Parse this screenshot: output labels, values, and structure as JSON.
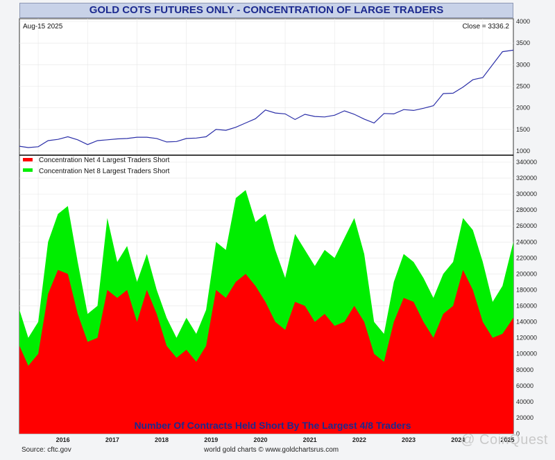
{
  "title": "GOLD COTS FUTURES ONLY - CONCENTRATION OF LARGE TRADERS",
  "date_label": "Aug-15  2025",
  "close_label": "Close = 3336.2",
  "source": "Source: cftc.gov",
  "credit": "world gold charts © www.goldchartsrus.com",
  "watermark": "@ CoinQuest",
  "bottom_caption": "Number Of Contracts Held Short By The Largest 4/8 Traders",
  "colors": {
    "price_line": "#2b2fa8",
    "net4": "#ff0000",
    "net8": "#00ee00",
    "title_text": "#1c2a8f"
  },
  "chart_data": [
    {
      "type": "line",
      "series": [
        {
          "name": "",
          "x": [
            2015.62,
            2015.8,
            2016.0,
            2016.2,
            2016.4,
            2016.6,
            2016.8,
            2017.0,
            2017.2,
            2017.4,
            2017.6,
            2017.8,
            2018.0,
            2018.2,
            2018.4,
            2018.6,
            2018.8,
            2019.0,
            2019.2,
            2019.4,
            2019.6,
            2019.8,
            2020.0,
            2020.2,
            2020.4,
            2020.6,
            2020.8,
            2021.0,
            2021.2,
            2021.4,
            2021.6,
            2021.8,
            2022.0,
            2022.2,
            2022.4,
            2022.6,
            2022.8,
            2023.0,
            2023.2,
            2023.4,
            2023.6,
            2023.8,
            2024.0,
            2024.2,
            2024.4,
            2024.6,
            2024.8,
            2025.0,
            2025.2,
            2025.4,
            2025.62
          ],
          "y": [
            1110,
            1080,
            1100,
            1240,
            1270,
            1330,
            1260,
            1150,
            1240,
            1260,
            1280,
            1290,
            1320,
            1320,
            1290,
            1210,
            1220,
            1290,
            1300,
            1330,
            1500,
            1480,
            1550,
            1650,
            1750,
            1950,
            1880,
            1860,
            1730,
            1850,
            1800,
            1790,
            1830,
            1930,
            1850,
            1740,
            1650,
            1870,
            1860,
            1960,
            1940,
            1990,
            2050,
            2330,
            2340,
            2480,
            2650,
            2700,
            3000,
            3300,
            3336.2
          ]
        }
      ],
      "ylim": [
        1000,
        4000
      ],
      "yticks": [
        1000,
        1500,
        2000,
        2500,
        3000,
        3500,
        4000
      ]
    },
    {
      "type": "area",
      "x": [
        2015.62,
        2015.8,
        2016.0,
        2016.2,
        2016.4,
        2016.6,
        2016.8,
        2017.0,
        2017.2,
        2017.4,
        2017.6,
        2017.8,
        2018.0,
        2018.2,
        2018.4,
        2018.6,
        2018.8,
        2019.0,
        2019.2,
        2019.4,
        2019.6,
        2019.8,
        2020.0,
        2020.2,
        2020.4,
        2020.6,
        2020.8,
        2021.0,
        2021.2,
        2021.4,
        2021.6,
        2021.8,
        2022.0,
        2022.2,
        2022.4,
        2022.6,
        2022.8,
        2023.0,
        2023.2,
        2023.4,
        2023.6,
        2023.8,
        2024.0,
        2024.2,
        2024.4,
        2024.6,
        2024.8,
        2025.0,
        2025.2,
        2025.4,
        2025.62
      ],
      "series": [
        {
          "name": "Concentration Net 8 Largest Traders Short",
          "values": [
            155000,
            120000,
            140000,
            240000,
            275000,
            285000,
            215000,
            150000,
            160000,
            270000,
            215000,
            235000,
            190000,
            225000,
            180000,
            145000,
            120000,
            145000,
            125000,
            155000,
            240000,
            230000,
            295000,
            305000,
            265000,
            275000,
            230000,
            195000,
            250000,
            230000,
            210000,
            230000,
            220000,
            245000,
            270000,
            225000,
            140000,
            125000,
            190000,
            225000,
            215000,
            195000,
            170000,
            200000,
            215000,
            270000,
            255000,
            215000,
            165000,
            185000,
            240000
          ]
        },
        {
          "name": "Concentration Net 4 Largest Traders Short",
          "values": [
            110000,
            85000,
            100000,
            175000,
            205000,
            200000,
            150000,
            115000,
            120000,
            180000,
            170000,
            180000,
            140000,
            180000,
            150000,
            110000,
            95000,
            105000,
            90000,
            110000,
            180000,
            170000,
            190000,
            200000,
            185000,
            165000,
            140000,
            130000,
            165000,
            160000,
            140000,
            150000,
            135000,
            140000,
            160000,
            140000,
            100000,
            90000,
            140000,
            170000,
            165000,
            140000,
            120000,
            150000,
            160000,
            205000,
            180000,
            140000,
            120000,
            125000,
            145000
          ]
        }
      ],
      "ylim": [
        0,
        340000
      ],
      "yticks": [
        0,
        20000,
        40000,
        60000,
        80000,
        100000,
        120000,
        140000,
        160000,
        180000,
        200000,
        220000,
        240000,
        260000,
        280000,
        300000,
        320000,
        340000
      ],
      "xticks": [
        "2016",
        "2017",
        "2018",
        "2019",
        "2020",
        "2021",
        "2022",
        "2023",
        "2024",
        "2025"
      ]
    }
  ]
}
